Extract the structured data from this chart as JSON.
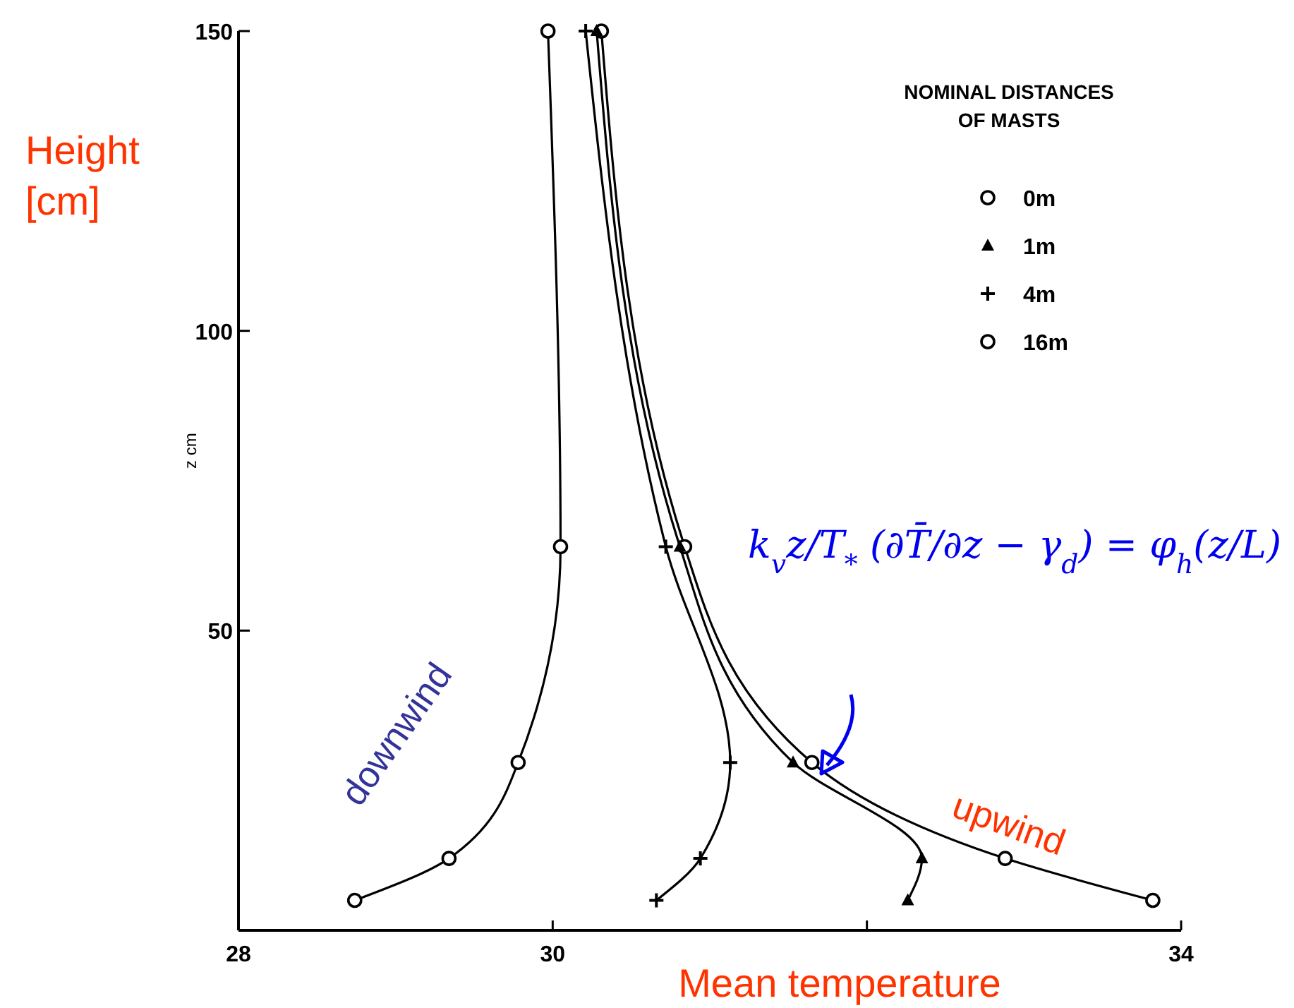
{
  "chart_data": {
    "type": "line",
    "xlabel": "Mean temperature",
    "ylabel": "z cm",
    "legend_title": "NOMINAL DISTANCES OF MASTS",
    "legend": "top right",
    "xlim": [
      28,
      34
    ],
    "ylim": [
      0,
      150
    ],
    "xticks": [
      28,
      30,
      {
        "value": 32,
        "label": null
      },
      34
    ],
    "yticks": [
      50,
      100,
      150
    ],
    "grid": false,
    "series": [
      {
        "name": "0m",
        "color": "#000000",
        "marker": "circle",
        "x": [
          33.82,
          32.88,
          31.65,
          30.84,
          30.31
        ],
        "values": [
          5,
          12,
          28,
          64,
          150
        ]
      },
      {
        "name": "1m",
        "color": "#000000",
        "marker": "triangle",
        "x": [
          32.26,
          32.35,
          31.53,
          30.81,
          30.28
        ],
        "values": [
          5,
          12,
          28,
          64,
          150
        ]
      },
      {
        "name": "4m",
        "color": "#000000",
        "marker": "cross",
        "x": [
          30.66,
          30.94,
          31.13,
          30.72,
          30.21
        ],
        "values": [
          5,
          12,
          28,
          64,
          150
        ]
      },
      {
        "name": "16m",
        "color": "#000000",
        "marker": "circle",
        "x": [
          28.74,
          29.34,
          29.78,
          30.05,
          29.97
        ],
        "values": [
          5,
          12,
          28,
          64,
          150
        ]
      }
    ],
    "annotations": [
      "downwind",
      "upwind",
      "k$_{v}$z/T$_{*}$ (∂T̄/∂z − γ$_{d}$) = φ$_{h}$(z/L)",
      "Height [cm]"
    ]
  }
}
